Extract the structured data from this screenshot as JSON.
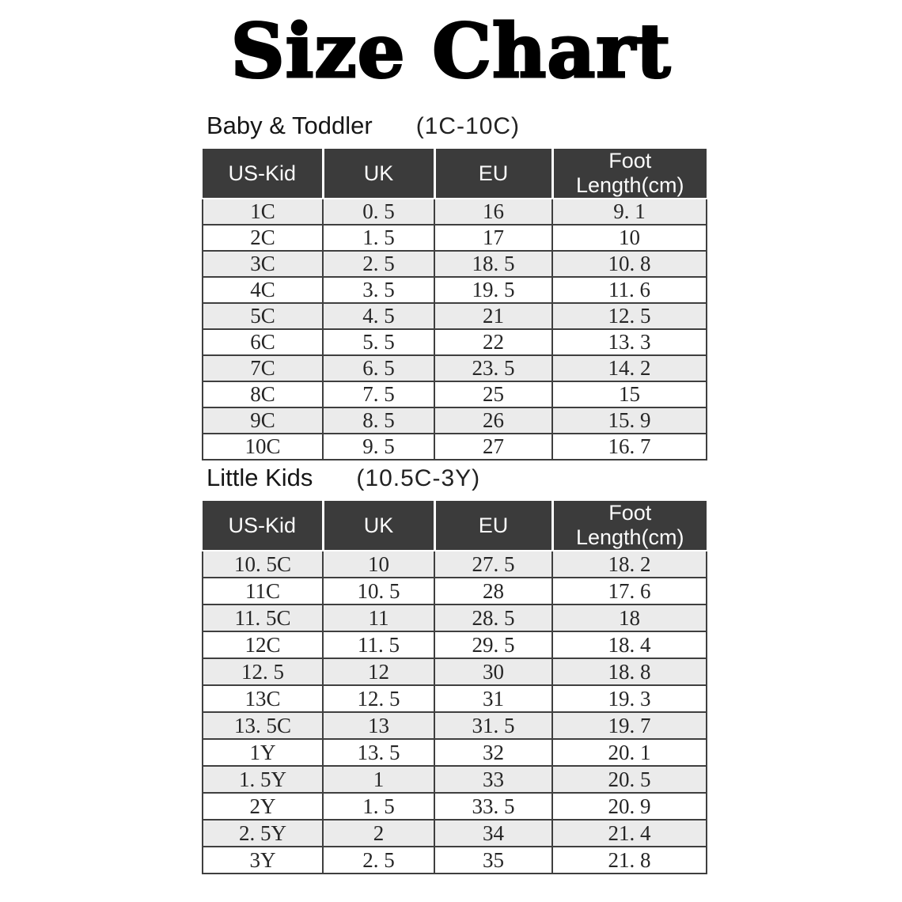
{
  "page_title": "Size Chart",
  "colors": {
    "header_bg": "#3b3b3b",
    "header_text": "#ffffff",
    "row_alt_bg": "#ebebeb",
    "row_bg": "#ffffff",
    "grid_border": "#3f3f3f",
    "body_text": "#262626",
    "title_text": "#000000"
  },
  "chart_data": [
    {
      "type": "table",
      "title": "Baby & Toddler",
      "range_label": "(1C-10C)",
      "columns": [
        "US-Kid",
        "UK",
        "EU",
        "Foot Length(cm)"
      ],
      "rows": [
        [
          "1C",
          "0. 5",
          "16",
          "9. 1"
        ],
        [
          "2C",
          "1. 5",
          "17",
          "10"
        ],
        [
          "3C",
          "2. 5",
          "18. 5",
          "10. 8"
        ],
        [
          "4C",
          "3. 5",
          "19. 5",
          "11. 6"
        ],
        [
          "5C",
          "4. 5",
          "21",
          "12. 5"
        ],
        [
          "6C",
          "5. 5",
          "22",
          "13. 3"
        ],
        [
          "7C",
          "6. 5",
          "23. 5",
          "14. 2"
        ],
        [
          "8C",
          "7. 5",
          "25",
          "15"
        ],
        [
          "9C",
          "8. 5",
          "26",
          "15. 9"
        ],
        [
          "10C",
          "9. 5",
          "27",
          "16. 7"
        ]
      ]
    },
    {
      "type": "table",
      "title": "Little Kids",
      "range_label": "(10.5C-3Y)",
      "columns": [
        "US-Kid",
        "UK",
        "EU",
        "Foot Length(cm)"
      ],
      "rows": [
        [
          "10. 5C",
          "10",
          "27. 5",
          "18. 2"
        ],
        [
          "11C",
          "10. 5",
          "28",
          "17. 6"
        ],
        [
          "11. 5C",
          "11",
          "28. 5",
          "18"
        ],
        [
          "12C",
          "11. 5",
          "29. 5",
          "18. 4"
        ],
        [
          "12. 5",
          "12",
          "30",
          "18. 8"
        ],
        [
          "13C",
          "12. 5",
          "31",
          "19. 3"
        ],
        [
          "13. 5C",
          "13",
          "31. 5",
          "19. 7"
        ],
        [
          "1Y",
          "13. 5",
          "32",
          "20. 1"
        ],
        [
          "1. 5Y",
          "1",
          "33",
          "20. 5"
        ],
        [
          "2Y",
          "1. 5",
          "33. 5",
          "20. 9"
        ],
        [
          "2. 5Y",
          "2",
          "34",
          "21. 4"
        ],
        [
          "3Y",
          "2. 5",
          "35",
          "21. 8"
        ]
      ]
    }
  ]
}
